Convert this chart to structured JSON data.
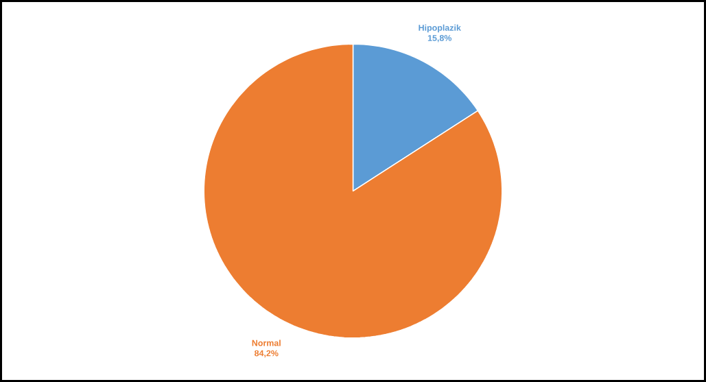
{
  "chart_data": {
    "type": "pie",
    "categories": [
      "Hipoplazik",
      "Normal"
    ],
    "values": [
      15.8,
      84.2
    ],
    "colors": [
      "#5b9bd5",
      "#ed7d31"
    ],
    "value_labels": [
      "15,8%",
      "84,2%"
    ]
  }
}
